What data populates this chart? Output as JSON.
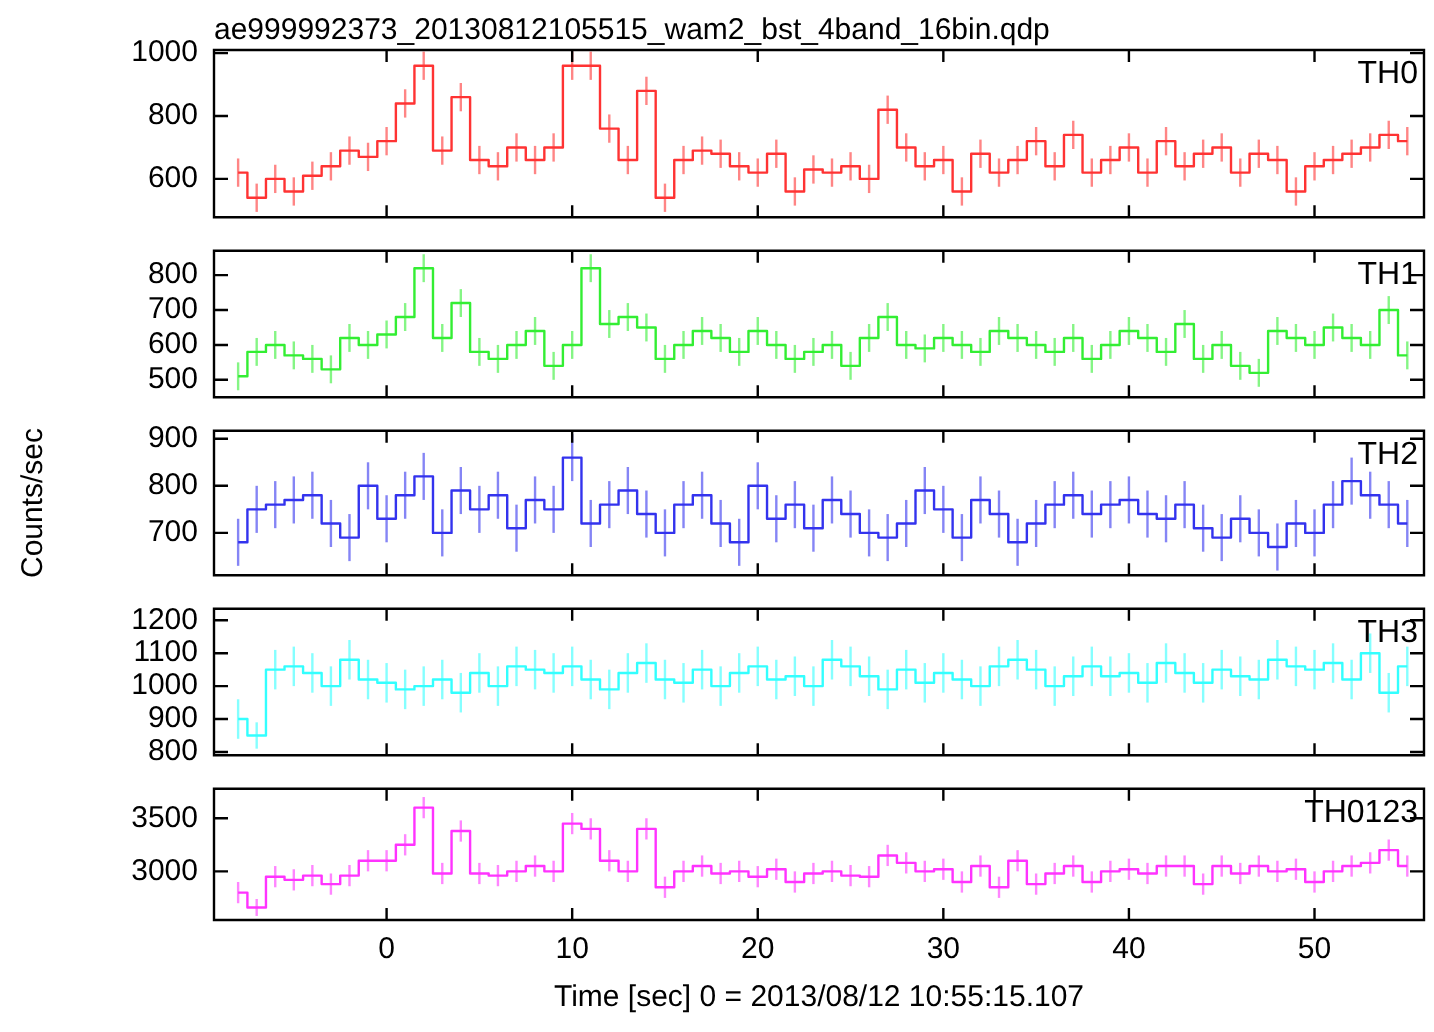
{
  "chart_data": [
    {
      "type": "step",
      "title": "ae999992373_20130812105515_wam2_bst_4band_16bin.qdp",
      "x": [
        -8,
        -7,
        -6,
        -5,
        -4,
        -3,
        -2,
        -1,
        0,
        1,
        2,
        3,
        4,
        5,
        6,
        7,
        8,
        9,
        10,
        11,
        12,
        13,
        14,
        15,
        16,
        17,
        18,
        19,
        20,
        21,
        22,
        23,
        24,
        25,
        26,
        27,
        28,
        29,
        30,
        31,
        32,
        33,
        34,
        35,
        36,
        37,
        38,
        39,
        40,
        41,
        42,
        43,
        44,
        45,
        46,
        47,
        48,
        49,
        50,
        51,
        52,
        53,
        54,
        55
      ],
      "xlim": [
        -9.3,
        55.9
      ],
      "xticks": [
        0,
        10,
        20,
        30,
        40,
        50
      ],
      "ylim": [
        478,
        1010
      ],
      "yticks": [
        600,
        800,
        1000
      ],
      "tick_labels": "y",
      "grid": false,
      "series": [
        {
          "name": "TH0",
          "color": "#ff3333",
          "values": [
            620,
            540,
            600,
            560,
            610,
            640,
            690,
            670,
            720,
            840,
            960,
            690,
            860,
            660,
            640,
            700,
            660,
            700,
            960,
            960,
            760,
            660,
            880,
            540,
            660,
            690,
            680,
            640,
            620,
            680,
            560,
            630,
            620,
            640,
            600,
            820,
            700,
            640,
            660,
            560,
            680,
            620,
            660,
            720,
            640,
            740,
            620,
            660,
            700,
            620,
            720,
            640,
            680,
            700,
            620,
            680,
            660,
            560,
            640,
            660,
            680,
            700,
            740,
            720
          ],
          "errors": [
            45,
            45,
            45,
            45,
            45,
            45,
            45,
            45,
            45,
            45,
            45,
            45,
            45,
            45,
            45,
            45,
            45,
            45,
            45,
            45,
            45,
            45,
            45,
            45,
            45,
            45,
            45,
            45,
            45,
            45,
            45,
            45,
            45,
            45,
            45,
            45,
            45,
            45,
            45,
            45,
            45,
            45,
            45,
            45,
            45,
            45,
            45,
            45,
            45,
            45,
            45,
            45,
            45,
            45,
            45,
            45,
            45,
            45,
            45,
            45,
            45,
            45,
            45,
            45
          ]
        }
      ]
    },
    {
      "type": "step",
      "x": [
        -8,
        -7,
        -6,
        -5,
        -4,
        -3,
        -2,
        -1,
        0,
        1,
        2,
        3,
        4,
        5,
        6,
        7,
        8,
        9,
        10,
        11,
        12,
        13,
        14,
        15,
        16,
        17,
        18,
        19,
        20,
        21,
        22,
        23,
        24,
        25,
        26,
        27,
        28,
        29,
        30,
        31,
        32,
        33,
        34,
        35,
        36,
        37,
        38,
        39,
        40,
        41,
        42,
        43,
        44,
        45,
        46,
        47,
        48,
        49,
        50,
        51,
        52,
        53,
        54,
        55
      ],
      "xlim": [
        -9.3,
        55.9
      ],
      "xticks": [
        0,
        10,
        20,
        30,
        40,
        50
      ],
      "ylim": [
        450,
        870
      ],
      "yticks": [
        500,
        600,
        700,
        800
      ],
      "tick_labels": "y",
      "grid": false,
      "series": [
        {
          "name": "TH1",
          "color": "#33ee33",
          "values": [
            510,
            580,
            600,
            570,
            560,
            530,
            620,
            600,
            630,
            680,
            820,
            620,
            720,
            580,
            560,
            600,
            640,
            540,
            600,
            820,
            660,
            680,
            650,
            560,
            600,
            640,
            620,
            580,
            640,
            600,
            560,
            580,
            600,
            540,
            620,
            680,
            600,
            590,
            620,
            600,
            580,
            640,
            620,
            600,
            580,
            620,
            560,
            600,
            640,
            620,
            580,
            660,
            560,
            600,
            540,
            520,
            640,
            620,
            600,
            650,
            620,
            600,
            700,
            570
          ],
          "errors": [
            40,
            40,
            40,
            40,
            40,
            40,
            40,
            40,
            40,
            40,
            40,
            40,
            40,
            40,
            40,
            40,
            40,
            40,
            40,
            40,
            40,
            40,
            40,
            40,
            40,
            40,
            40,
            40,
            40,
            40,
            40,
            40,
            40,
            40,
            40,
            40,
            40,
            40,
            40,
            40,
            40,
            40,
            40,
            40,
            40,
            40,
            40,
            40,
            40,
            40,
            40,
            40,
            40,
            40,
            40,
            40,
            40,
            40,
            40,
            40,
            40,
            40,
            40,
            40
          ]
        }
      ]
    },
    {
      "type": "step",
      "ylabel": "Counts/sec",
      "x": [
        -8,
        -7,
        -6,
        -5,
        -4,
        -3,
        -2,
        -1,
        0,
        1,
        2,
        3,
        4,
        5,
        6,
        7,
        8,
        9,
        10,
        11,
        12,
        13,
        14,
        15,
        16,
        17,
        18,
        19,
        20,
        21,
        22,
        23,
        24,
        25,
        26,
        27,
        28,
        29,
        30,
        31,
        32,
        33,
        34,
        35,
        36,
        37,
        38,
        39,
        40,
        41,
        42,
        43,
        44,
        45,
        46,
        47,
        48,
        49,
        50,
        51,
        52,
        53,
        54,
        55
      ],
      "xlim": [
        -9.3,
        55.9
      ],
      "xticks": [
        0,
        10,
        20,
        30,
        40,
        50
      ],
      "ylim": [
        610,
        917
      ],
      "yticks": [
        700,
        800,
        900
      ],
      "tick_labels": "y",
      "grid": false,
      "series": [
        {
          "name": "TH2",
          "color": "#3333ee",
          "values": [
            680,
            750,
            760,
            770,
            780,
            720,
            690,
            800,
            730,
            780,
            820,
            700,
            790,
            750,
            780,
            710,
            770,
            750,
            860,
            720,
            760,
            790,
            740,
            700,
            760,
            780,
            720,
            680,
            800,
            730,
            760,
            710,
            770,
            740,
            700,
            690,
            720,
            790,
            750,
            690,
            770,
            740,
            680,
            720,
            760,
            780,
            740,
            760,
            770,
            740,
            730,
            760,
            710,
            690,
            730,
            700,
            670,
            720,
            700,
            760,
            810,
            780,
            760,
            720
          ],
          "errors": [
            50,
            50,
            50,
            50,
            50,
            50,
            50,
            50,
            50,
            50,
            50,
            50,
            50,
            50,
            50,
            50,
            50,
            50,
            50,
            50,
            50,
            50,
            50,
            50,
            50,
            50,
            50,
            50,
            50,
            50,
            50,
            50,
            50,
            50,
            50,
            50,
            50,
            50,
            50,
            50,
            50,
            50,
            50,
            50,
            50,
            50,
            50,
            50,
            50,
            50,
            50,
            50,
            50,
            50,
            50,
            50,
            50,
            50,
            50,
            50,
            50,
            50,
            50,
            50
          ]
        }
      ]
    },
    {
      "type": "step",
      "x": [
        -8,
        -7,
        -6,
        -5,
        -4,
        -3,
        -2,
        -1,
        0,
        1,
        2,
        3,
        4,
        5,
        6,
        7,
        8,
        9,
        10,
        11,
        12,
        13,
        14,
        15,
        16,
        17,
        18,
        19,
        20,
        21,
        22,
        23,
        24,
        25,
        26,
        27,
        28,
        29,
        30,
        31,
        32,
        33,
        34,
        35,
        36,
        37,
        38,
        39,
        40,
        41,
        42,
        43,
        44,
        45,
        46,
        47,
        48,
        49,
        50,
        51,
        52,
        53,
        54,
        55
      ],
      "xlim": [
        -9.3,
        55.9
      ],
      "xticks": [
        0,
        10,
        20,
        30,
        40,
        50
      ],
      "ylim": [
        790,
        1235
      ],
      "yticks": [
        800,
        900,
        1000,
        1100,
        1200
      ],
      "tick_labels": "y",
      "grid": false,
      "series": [
        {
          "name": "TH3",
          "color": "#33ffff",
          "values": [
            900,
            850,
            1050,
            1060,
            1040,
            1000,
            1080,
            1020,
            1010,
            990,
            1000,
            1020,
            980,
            1040,
            1000,
            1060,
            1050,
            1040,
            1060,
            1020,
            990,
            1040,
            1070,
            1020,
            1010,
            1050,
            1000,
            1040,
            1060,
            1020,
            1030,
            1000,
            1080,
            1060,
            1030,
            990,
            1050,
            1010,
            1040,
            1020,
            1000,
            1060,
            1080,
            1050,
            1000,
            1030,
            1060,
            1030,
            1040,
            1010,
            1070,
            1040,
            1010,
            1050,
            1030,
            1020,
            1080,
            1060,
            1050,
            1070,
            1020,
            1100,
            980,
            1060
          ],
          "errors": [
            60,
            40,
            60,
            60,
            60,
            60,
            60,
            60,
            60,
            60,
            60,
            60,
            60,
            60,
            60,
            60,
            60,
            60,
            60,
            60,
            60,
            60,
            60,
            60,
            60,
            60,
            60,
            60,
            60,
            60,
            60,
            60,
            60,
            60,
            60,
            60,
            60,
            60,
            60,
            60,
            60,
            60,
            60,
            60,
            60,
            60,
            60,
            60,
            60,
            60,
            60,
            60,
            60,
            60,
            60,
            60,
            60,
            60,
            60,
            60,
            60,
            60,
            60,
            60
          ]
        }
      ]
    },
    {
      "type": "step",
      "xlabel": "Time [sec] 0 = 2013/08/12 10:55:15.107",
      "x": [
        -8,
        -7,
        -6,
        -5,
        -4,
        -3,
        -2,
        -1,
        0,
        1,
        2,
        3,
        4,
        5,
        6,
        7,
        8,
        9,
        10,
        11,
        12,
        13,
        14,
        15,
        16,
        17,
        18,
        19,
        20,
        21,
        22,
        23,
        24,
        25,
        26,
        27,
        28,
        29,
        30,
        31,
        32,
        33,
        34,
        35,
        36,
        37,
        38,
        39,
        40,
        41,
        42,
        43,
        44,
        45,
        46,
        47,
        48,
        49,
        50,
        51,
        52,
        53,
        54,
        55
      ],
      "xlim": [
        -9.3,
        55.9
      ],
      "xticks": [
        0,
        10,
        20,
        30,
        40,
        50
      ],
      "ylim": [
        2542,
        3778
      ],
      "yticks": [
        3000,
        3500
      ],
      "grid": false,
      "series": [
        {
          "name": "TH0123",
          "color": "#ff33ff",
          "values": [
            2800,
            2660,
            2950,
            2920,
            2960,
            2880,
            2960,
            3100,
            3100,
            3250,
            3600,
            2980,
            3380,
            2980,
            2960,
            3000,
            3050,
            3000,
            3450,
            3400,
            3100,
            3000,
            3400,
            2850,
            3000,
            3050,
            2980,
            3000,
            2950,
            3020,
            2900,
            2980,
            3000,
            2960,
            2950,
            3150,
            3080,
            3000,
            3020,
            2900,
            3050,
            2850,
            3100,
            2880,
            2980,
            3050,
            2900,
            3000,
            3020,
            2980,
            3050,
            3050,
            2880,
            3050,
            2980,
            3050,
            3000,
            3020,
            2900,
            3000,
            3050,
            3080,
            3200,
            3050
          ],
          "errors": [
            100,
            80,
            100,
            100,
            100,
            100,
            100,
            100,
            100,
            100,
            100,
            100,
            100,
            100,
            100,
            100,
            100,
            100,
            100,
            100,
            100,
            100,
            100,
            100,
            100,
            100,
            100,
            100,
            100,
            100,
            100,
            100,
            100,
            100,
            100,
            100,
            100,
            100,
            100,
            100,
            100,
            100,
            100,
            100,
            100,
            100,
            100,
            100,
            100,
            100,
            100,
            100,
            100,
            100,
            100,
            100,
            100,
            100,
            100,
            100,
            100,
            100,
            100,
            100
          ]
        }
      ]
    }
  ]
}
